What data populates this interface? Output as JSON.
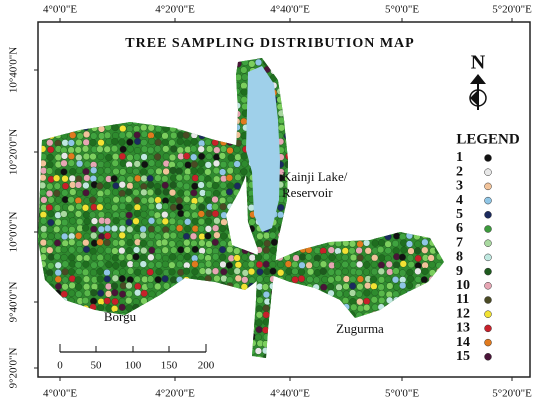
{
  "map": {
    "title": "TREE SAMPLING DISTRIBUTION MAP",
    "longitude_labels": [
      "4°0'0\"E",
      "4°20'0\"E",
      "4°40'0\"E",
      "5°0'0\"E",
      "5°20'0\"E"
    ],
    "latitude_labels": [
      "10°40'0\"N",
      "10°20'0\"N",
      "10°0'0\"N",
      "9°40'0\"N",
      "9°20'0\"N"
    ],
    "north": "N",
    "places": [
      "Kainji Lake/",
      "Reservoir",
      "Borgu",
      "Zugurma"
    ],
    "scale_labels": [
      "0",
      "50",
      "100",
      "150",
      "200"
    ],
    "legend": {
      "title": "LEGEND",
      "items": [
        {
          "label": "1",
          "color": "#111111"
        },
        {
          "label": "2",
          "color": "#e8e8e8"
        },
        {
          "label": "3",
          "color": "#f2c39a"
        },
        {
          "label": "4",
          "color": "#8fc6e6"
        },
        {
          "label": "5",
          "color": "#1b2a5e"
        },
        {
          "label": "6",
          "color": "#3c9a3c"
        },
        {
          "label": "7",
          "color": "#a9d9a0"
        },
        {
          "label": "8",
          "color": "#bfe8e0"
        },
        {
          "label": "9",
          "color": "#1e5a1e"
        },
        {
          "label": "10",
          "color": "#e7a6b4"
        },
        {
          "label": "11",
          "color": "#4a4a24"
        },
        {
          "label": "12",
          "color": "#f2e233"
        },
        {
          "label": "13",
          "color": "#c8202a"
        },
        {
          "label": "14",
          "color": "#e07a1e"
        },
        {
          "label": "15",
          "color": "#4a1438"
        }
      ]
    }
  }
}
